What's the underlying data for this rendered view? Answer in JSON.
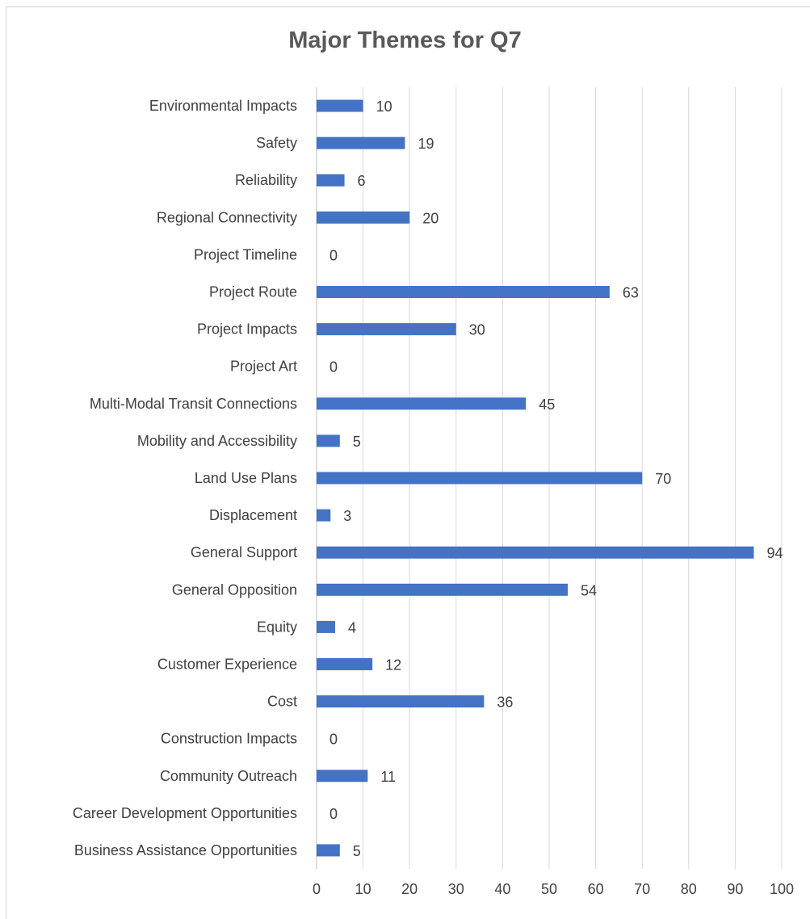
{
  "chart_data": {
    "type": "bar",
    "orientation": "horizontal",
    "title": "Major Themes for Q7",
    "categories": [
      "Environmental Impacts",
      "Safety",
      "Reliability",
      "Regional Connectivity",
      "Project Timeline",
      "Project Route",
      "Project Impacts",
      "Project Art",
      "Multi-Modal Transit Connections",
      "Mobility and Accessibility",
      "Land Use Plans",
      "Displacement",
      "General Support",
      "General Opposition",
      "Equity",
      "Customer Experience",
      "Cost",
      "Construction Impacts",
      "Community Outreach",
      "Career Development Opportunities",
      "Business Assistance Opportunities"
    ],
    "values": [
      10,
      19,
      6,
      20,
      0,
      63,
      30,
      0,
      45,
      5,
      70,
      3,
      94,
      54,
      4,
      12,
      36,
      0,
      11,
      0,
      5
    ],
    "xlim": [
      0,
      100
    ],
    "xticks": [
      0,
      10,
      20,
      30,
      40,
      50,
      60,
      70,
      80,
      90,
      100
    ],
    "grid": "vertical",
    "legend": "none",
    "bar_color": "#4472C4",
    "grid_color": "#d9d9d9"
  }
}
